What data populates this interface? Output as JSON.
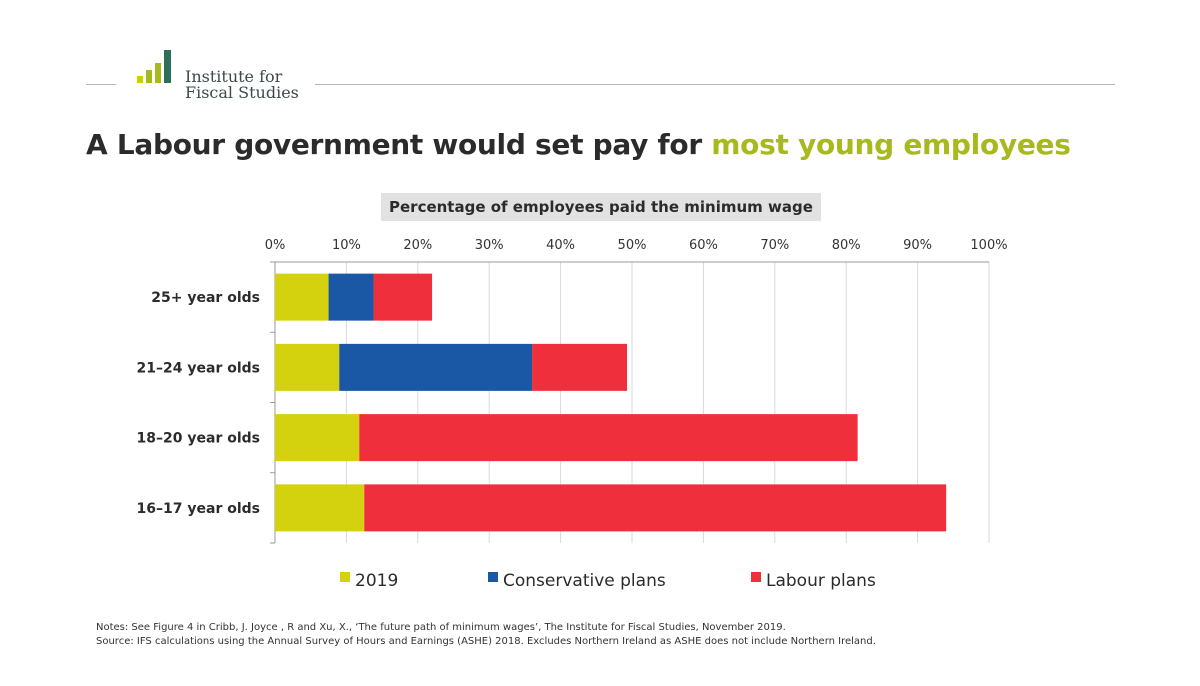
{
  "logo": {
    "line1": "Institute for",
    "line2": "Fiscal Studies",
    "bar_colors": [
      "#c8d400",
      "#a8b91e",
      "#2f6f5a"
    ]
  },
  "headline": {
    "lead": "A Labour government would set pay for ",
    "accent": "most young employees"
  },
  "notes": {
    "line1": "Notes: See Figure 4 in Cribb, J. Joyce , R and Xu, X., ‘The future path of minimum wages’, The Institute for Fiscal Studies, November 2019.",
    "line2": "Source: IFS calculations using the Annual Survey of Hours and Earnings (ASHE) 2018. Excludes Northern Ireland as ASHE does not include Northern Ireland."
  },
  "chart_data": {
    "type": "bar",
    "orientation": "horizontal",
    "stacked": true,
    "title": "Percentage of employees paid the minimum wage",
    "categories": [
      "25+ year olds",
      "21–24 year olds",
      "18–20 year olds",
      "16–17 year olds"
    ],
    "series": [
      {
        "name": "2019",
        "color": "#d4d20f",
        "values": [
          7.5,
          9,
          11.8,
          12.5
        ]
      },
      {
        "name": "Conservative plans",
        "color": "#1a58a6",
        "values": [
          6.3,
          27,
          0,
          0
        ]
      },
      {
        "name": "Labour plans",
        "color": "#ef2f3c",
        "values": [
          8.2,
          13.3,
          69.8,
          81.5
        ]
      }
    ],
    "xlim": [
      0,
      100
    ],
    "x_ticks": [
      "0%",
      "10%",
      "20%",
      "30%",
      "40%",
      "50%",
      "60%",
      "70%",
      "80%",
      "90%",
      "100%"
    ],
    "x_axis_position": "top",
    "grid": true,
    "legend": "bottom"
  }
}
